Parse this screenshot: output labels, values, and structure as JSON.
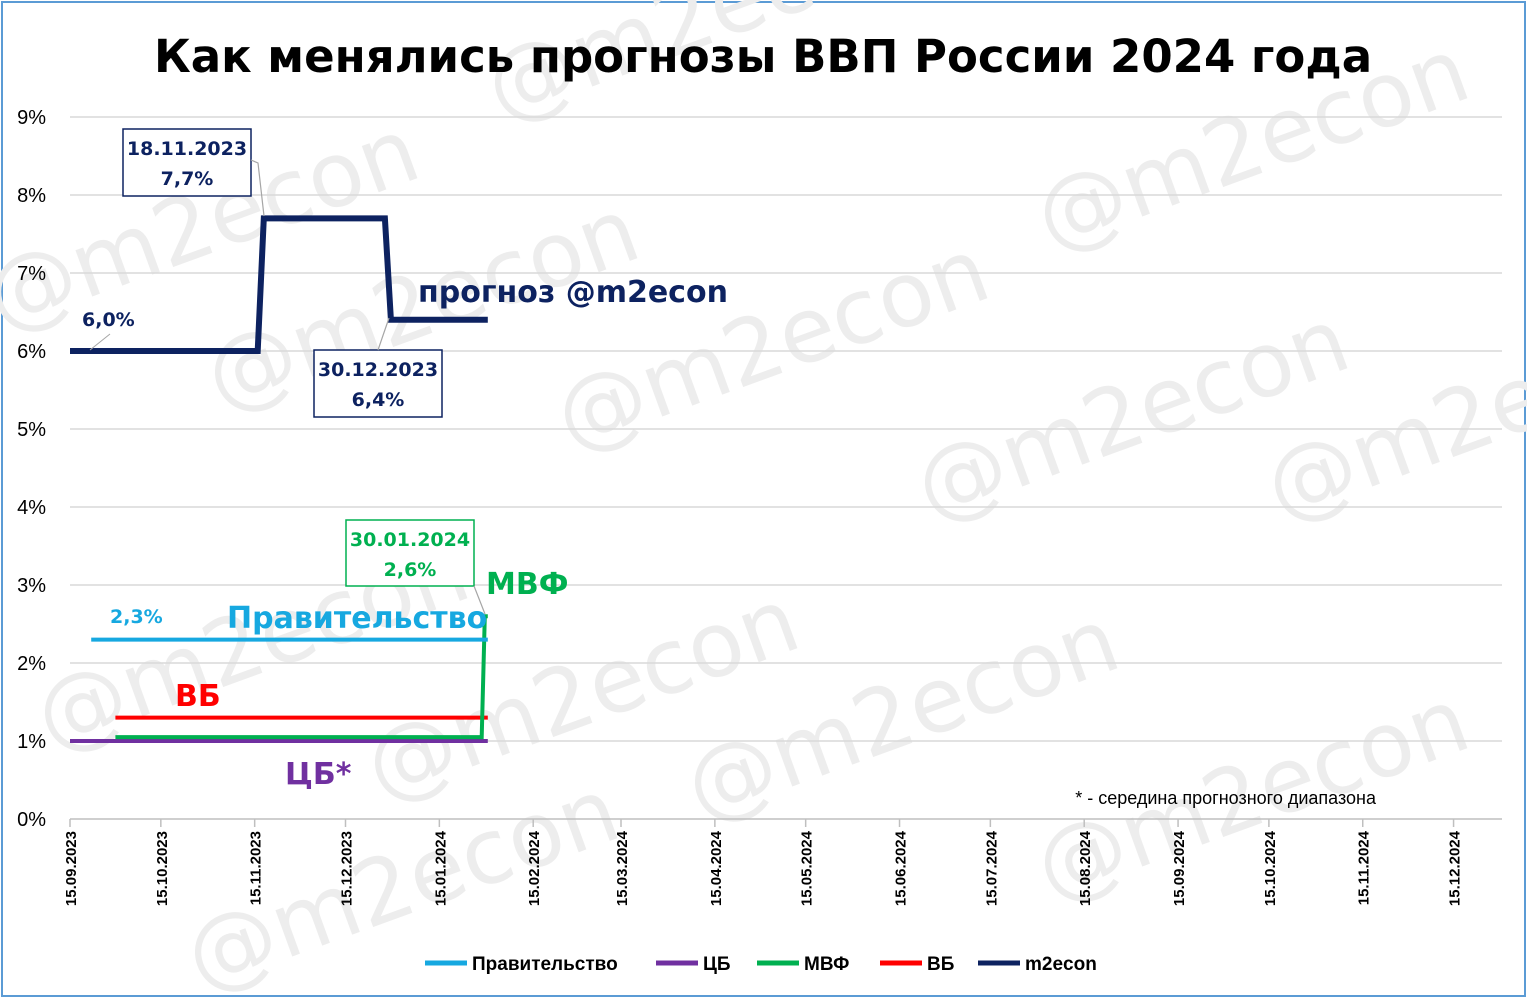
{
  "chart_data": {
    "type": "line",
    "title": "Как менялись прогнозы ВВП России 2024 года",
    "xlabel": "",
    "ylabel": "",
    "x_tick_labels": [
      "15.09.2023",
      "15.10.2023",
      "15.11.2023",
      "15.12.2023",
      "15.01.2024",
      "15.02.2024",
      "15.03.2024",
      "15.04.2024",
      "15.05.2024",
      "15.06.2024",
      "15.07.2024",
      "15.08.2024",
      "15.09.2024",
      "15.10.2024",
      "15.11.2024",
      "15.12.2024"
    ],
    "x_range": [
      "15.09.2023",
      "31.12.2024"
    ],
    "y_tick_labels": [
      "0%",
      "1%",
      "2%",
      "3%",
      "4%",
      "5%",
      "6%",
      "7%",
      "8%",
      "9%"
    ],
    "ylim": [
      0,
      9
    ],
    "grid": true,
    "legend_position": "bottom",
    "step": true,
    "series": [
      {
        "name": "Правительство",
        "color": "#16a8e0",
        "points": [
          [
            "22.09.2023",
            2.3
          ],
          [
            "31.01.2024",
            2.3
          ]
        ]
      },
      {
        "name": "ЦБ",
        "color": "#7030a0",
        "points": [
          [
            "15.09.2023",
            1.0
          ],
          [
            "31.01.2024",
            1.0
          ]
        ]
      },
      {
        "name": "МВФ",
        "color": "#00b050",
        "points": [
          [
            "30.09.2023",
            1.05
          ],
          [
            "29.01.2024",
            1.05
          ],
          [
            "30.01.2024",
            2.6
          ],
          [
            "31.01.2024",
            2.6
          ]
        ]
      },
      {
        "name": "ВБ",
        "color": "#ff0000",
        "points": [
          [
            "30.09.2023",
            1.3
          ],
          [
            "31.01.2024",
            1.3
          ]
        ]
      },
      {
        "name": "m2econ",
        "color": "#0d2260",
        "points": [
          [
            "15.09.2023",
            6.0
          ],
          [
            "16.11.2023",
            6.0
          ],
          [
            "18.11.2023",
            7.7
          ],
          [
            "28.12.2023",
            7.7
          ],
          [
            "30.12.2023",
            6.4
          ],
          [
            "31.01.2024",
            6.4
          ]
        ]
      }
    ],
    "series_labels": {
      "govt": "Правительство",
      "mvf": "МВФ",
      "vb": "ВБ",
      "cb": "ЦБ*",
      "m2econ": "прогноз @m2econ"
    },
    "annotations": {
      "m2econ_start": "6,0%",
      "govt_start": "2,3%",
      "callout_nov": {
        "date": "18.11.2023",
        "value": "7,7%"
      },
      "callout_dec": {
        "date": "30.12.2023",
        "value": "6,4%"
      },
      "callout_jan": {
        "date": "30.01.2024",
        "value": "2,6%"
      },
      "note": "* - середина прогнозного диапазона"
    }
  },
  "watermark": "@m2econ"
}
